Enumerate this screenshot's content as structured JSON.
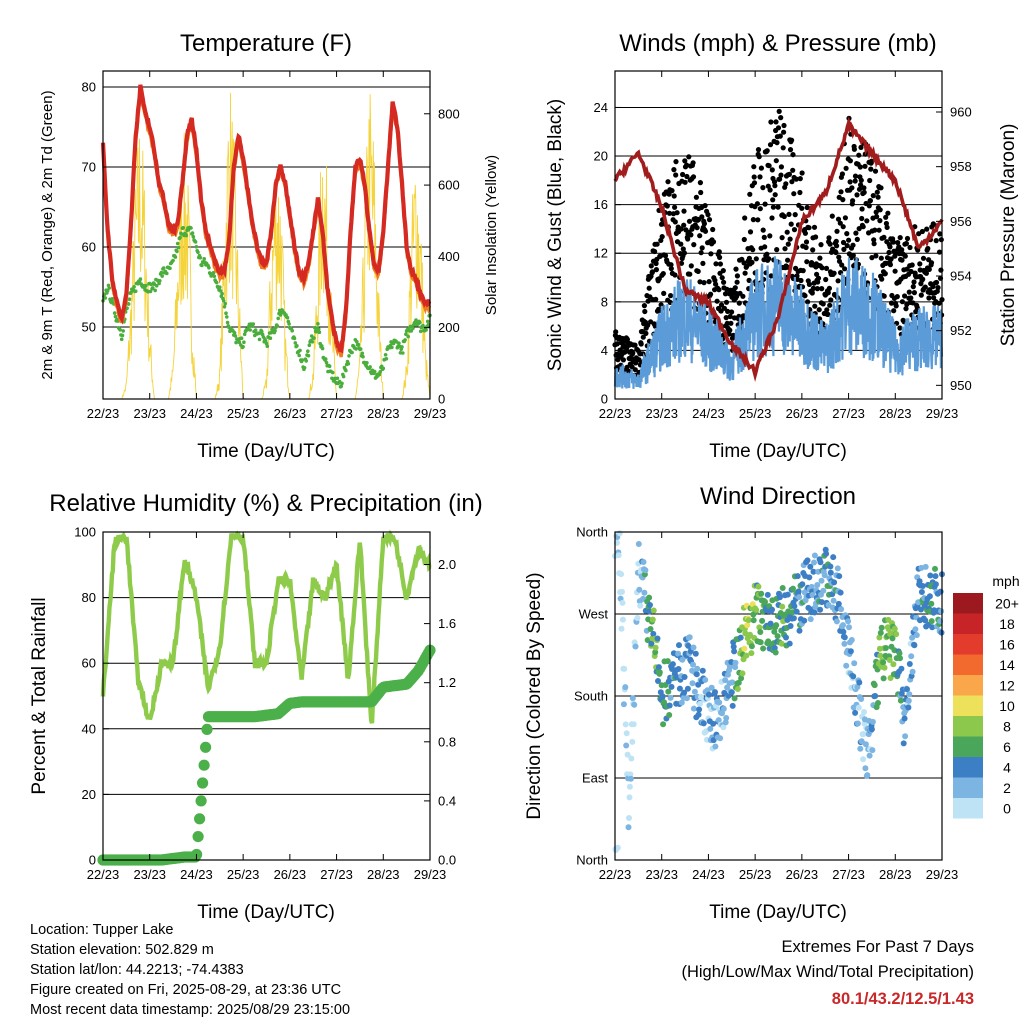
{
  "x_ticks": [
    "22/23",
    "23/23",
    "24/23",
    "25/23",
    "26/23",
    "27/23",
    "28/23",
    "29/23"
  ],
  "colors": {
    "temp_2m": "#d42a22",
    "temp_9m": "#f07c20",
    "dewpoint": "#4aad3c",
    "solar": "#f5d33a",
    "wind_sonic": "#5a9bd8",
    "wind_gust": "#000000",
    "pressure": "#a11c1c",
    "rh": "#8ecb4a",
    "precip": "#4cb04a"
  },
  "panels": {
    "temperature": {
      "title": "Temperature (F)",
      "ylabel_left": "2m & 9m T (Red, Orange) & 2m Td (Green)",
      "ylabel_right": "Solar Insolation (Yellow)",
      "xlabel": "Time (Day/UTC)",
      "left_ticks": [
        "50",
        "60",
        "70",
        "80"
      ],
      "right_ticks": [
        "0",
        "200",
        "400",
        "600",
        "800"
      ]
    },
    "winds": {
      "title": "Winds (mph) & Pressure (mb)",
      "ylabel_left": "Sonic Wind & Gust (Blue, Black)",
      "ylabel_right": "Station Pressure (Maroon)",
      "xlabel": "Time (Day/UTC)",
      "left_ticks": [
        "0",
        "4",
        "8",
        "12",
        "16",
        "20",
        "24"
      ],
      "right_ticks": [
        "950",
        "952",
        "954",
        "956",
        "958",
        "960"
      ]
    },
    "humidity": {
      "title": "Relative Humidity (%) & Precipitation (in)",
      "ylabel_left": "Percent & Total Rainfall",
      "xlabel": "Time (Day/UTC)",
      "left_ticks": [
        "0",
        "20",
        "40",
        "60",
        "80",
        "100"
      ],
      "right_ticks": [
        "0.0",
        "0.4",
        "0.8",
        "1.2",
        "1.6",
        "2.0"
      ]
    },
    "direction": {
      "title": "Wind Direction",
      "ylabel_left": "Direction (Colored By Speed)",
      "xlabel": "Time (Day/UTC)",
      "left_ticks": [
        "North",
        "East",
        "South",
        "West",
        "North"
      ],
      "legend_title": "mph",
      "legend_labels": [
        "20+",
        "18",
        "16",
        "14",
        "12",
        "10",
        "8",
        "6",
        "4",
        "2",
        "0"
      ],
      "legend_colors": [
        "#9c1a1f",
        "#c72427",
        "#e33b2c",
        "#f26a2e",
        "#f9a74a",
        "#ede05a",
        "#8cc84b",
        "#4aa65a",
        "#3c7fc4",
        "#7cb4e2",
        "#bde3f5"
      ]
    }
  },
  "footer": {
    "location": "Location: Tupper Lake",
    "elevation": "Station elevation: 502.829 m",
    "latlon": "Station lat/lon: 44.2213; -74.4383",
    "created": "Figure created on Fri, 2025-08-29, at 23:36 UTC",
    "recent": "Most recent data timestamp: 2025/08/29 23:15:00"
  },
  "extremes": {
    "title": "Extremes For Past 7 Days",
    "subtitle": "(High/Low/Max Wind/Total Precipitation)",
    "values": "80.1/43.2/12.5/1.43"
  },
  "chart_data": [
    {
      "type": "line",
      "title": "Temperature (F)",
      "xlabel": "Time (Day/UTC)",
      "ylabel": "2m & 9m T (Red, Orange) & 2m Td (Green)",
      "ylim": [
        41,
        82
      ],
      "y2label": "Solar Insolation (Yellow)",
      "y2lim": [
        0,
        920
      ],
      "x": [
        0,
        0.1,
        0.2,
        0.3,
        0.4,
        0.5,
        0.6,
        0.7,
        0.8,
        0.9,
        1.0,
        1.1,
        1.2,
        1.3,
        1.4,
        1.5,
        1.6,
        1.7,
        1.8,
        1.9,
        2.0,
        2.1,
        2.2,
        2.3,
        2.4,
        2.5,
        2.6,
        2.7,
        2.8,
        2.9,
        3.0,
        3.1,
        3.2,
        3.3,
        3.4,
        3.5,
        3.6,
        3.7,
        3.8,
        3.9,
        4.0,
        4.1,
        4.2,
        4.3,
        4.4,
        4.5,
        4.6,
        4.7,
        4.8,
        4.9,
        5.0,
        5.1,
        5.2,
        5.3,
        5.4,
        5.5,
        5.6,
        5.7,
        5.8,
        5.9,
        6.0,
        6.1,
        6.2,
        6.3,
        6.4,
        6.5,
        6.6,
        6.7,
        6.8,
        6.9,
        7.0
      ],
      "series": [
        {
          "name": "2m T",
          "values": [
            73,
            62,
            56,
            53,
            51,
            54,
            63,
            74,
            80,
            77,
            75,
            72,
            68,
            66,
            63,
            62,
            63,
            68,
            74,
            76,
            72,
            66,
            62,
            60,
            58,
            57,
            57,
            61,
            70,
            74,
            71,
            67,
            63,
            60,
            58,
            58,
            62,
            68,
            70,
            68,
            64,
            60,
            57,
            56,
            58,
            62,
            66,
            62,
            55,
            51,
            48,
            47,
            52,
            62,
            70,
            71,
            68,
            62,
            58,
            57,
            62,
            70,
            78,
            75,
            68,
            60,
            57,
            56,
            54,
            53,
            53
          ]
        },
        {
          "name": "2m Td",
          "values": [
            53,
            55,
            53,
            51,
            49,
            52,
            54,
            55,
            56,
            55,
            55,
            55,
            56,
            57,
            57,
            58,
            60,
            62,
            62,
            62,
            60,
            58,
            58,
            57,
            56,
            55,
            53,
            50,
            49,
            48,
            48,
            50,
            50,
            49,
            49,
            48,
            49,
            50,
            52,
            52,
            50,
            48,
            47,
            45,
            47,
            49,
            50,
            47,
            45,
            44,
            43,
            43,
            45,
            47,
            48,
            47,
            46,
            45,
            44,
            44,
            45,
            47,
            48,
            48,
            47,
            49,
            50,
            51,
            50,
            50,
            51
          ]
        },
        {
          "name": "Solar",
          "axis": "right",
          "values": [
            0,
            0,
            0,
            0,
            0,
            50,
            300,
            600,
            780,
            550,
            200,
            0,
            0,
            0,
            0,
            100,
            420,
            700,
            650,
            280,
            0,
            0,
            0,
            0,
            0,
            80,
            500,
            880,
            700,
            350,
            0,
            0,
            0,
            0,
            0,
            60,
            420,
            680,
            600,
            200,
            0,
            0,
            0,
            0,
            0,
            90,
            400,
            780,
            560,
            250,
            0,
            0,
            0,
            0,
            0,
            120,
            500,
            850,
            700,
            300,
            0,
            0,
            0,
            0,
            0,
            100,
            480,
            700,
            500,
            150,
            0
          ]
        }
      ]
    },
    {
      "type": "line",
      "title": "Winds (mph) & Pressure (mb)",
      "xlabel": "Time (Day/UTC)",
      "ylabel": "Sonic Wind & Gust (Blue, Black)",
      "ylim": [
        0,
        27
      ],
      "y2label": "Station Pressure (Maroon)",
      "y2lim": [
        949.5,
        961.5
      ],
      "x": [
        0,
        0.5,
        1.0,
        1.5,
        2.0,
        2.5,
        3.0,
        3.5,
        4.0,
        4.5,
        5.0,
        5.5,
        6.0,
        6.5,
        7.0
      ],
      "series": [
        {
          "name": "Sonic Wind",
          "values": [
            2,
            1.5,
            5,
            7,
            5,
            3,
            7,
            8,
            6,
            4,
            8,
            7,
            4,
            5,
            5
          ]
        },
        {
          "name": "Gust",
          "values": [
            4,
            3,
            12,
            15,
            11,
            6,
            14,
            17,
            13,
            8,
            16,
            14,
            9,
            10,
            10
          ]
        },
        {
          "name": "Pressure",
          "axis": "right",
          "values": [
            957.5,
            958.5,
            956.5,
            953.5,
            953.0,
            951.5,
            950.5,
            952.5,
            956.0,
            957.0,
            959.5,
            958.5,
            957.5,
            955.0,
            956.0
          ]
        }
      ]
    },
    {
      "type": "line",
      "title": "Relative Humidity (%) & Precipitation (in)",
      "xlabel": "Time (Day/UTC)",
      "ylabel": "Percent & Total Rainfall",
      "ylim": [
        0,
        100
      ],
      "y2lim": [
        0,
        2.22
      ],
      "x": [
        0,
        0.25,
        0.5,
        0.75,
        1.0,
        1.25,
        1.5,
        1.75,
        2.0,
        2.25,
        2.5,
        2.75,
        3.0,
        3.25,
        3.5,
        3.75,
        4.0,
        4.25,
        4.5,
        4.75,
        5.0,
        5.25,
        5.5,
        5.75,
        6.0,
        6.25,
        6.5,
        6.75,
        7.0
      ],
      "series": [
        {
          "name": "RH",
          "values": [
            50,
            97,
            99,
            55,
            42,
            60,
            60,
            92,
            80,
            52,
            65,
            99,
            99,
            60,
            60,
            85,
            85,
            55,
            85,
            80,
            90,
            55,
            98,
            40,
            99,
            98,
            80,
            95,
            90
          ]
        },
        {
          "name": "Precipitation",
          "axis": "right",
          "values": [
            0,
            0,
            0,
            0,
            0,
            0,
            0.01,
            0.02,
            0.02,
            0.97,
            0.97,
            0.97,
            0.97,
            0.97,
            0.98,
            0.99,
            1.06,
            1.07,
            1.07,
            1.07,
            1.07,
            1.07,
            1.07,
            1.07,
            1.17,
            1.18,
            1.19,
            1.28,
            1.42
          ]
        }
      ]
    },
    {
      "type": "scatter",
      "title": "Wind Direction",
      "xlabel": "Time (Day/UTC)",
      "ylabel": "Direction (Colored By Speed)",
      "ylim": [
        0,
        360
      ],
      "y_tick_labels": [
        "North",
        "East",
        "South",
        "West",
        "North"
      ],
      "x": [
        0.1,
        0.3,
        0.5,
        0.8,
        1.0,
        1.3,
        1.6,
        1.9,
        2.2,
        2.5,
        2.8,
        3.0,
        3.3,
        3.6,
        3.9,
        4.2,
        4.5,
        4.8,
        5.1,
        5.4,
        5.7,
        6.0,
        6.2,
        6.5,
        6.8,
        7.0
      ],
      "series": [
        {
          "name": "Direction",
          "values": [
            340,
            40,
            320,
            250,
            180,
            200,
            210,
            170,
            150,
            200,
            250,
            270,
            260,
            265,
            280,
            300,
            310,
            290,
            200,
            110,
            230,
            230,
            150,
            290,
            290,
            280
          ]
        },
        {
          "name": "Speed",
          "values": [
            1,
            1,
            1,
            8,
            6,
            5,
            4,
            3,
            3,
            4,
            10,
            8,
            6,
            7,
            5,
            4,
            5,
            4,
            3,
            2,
            8,
            8,
            3,
            4,
            6,
            4
          ]
        }
      ]
    }
  ]
}
